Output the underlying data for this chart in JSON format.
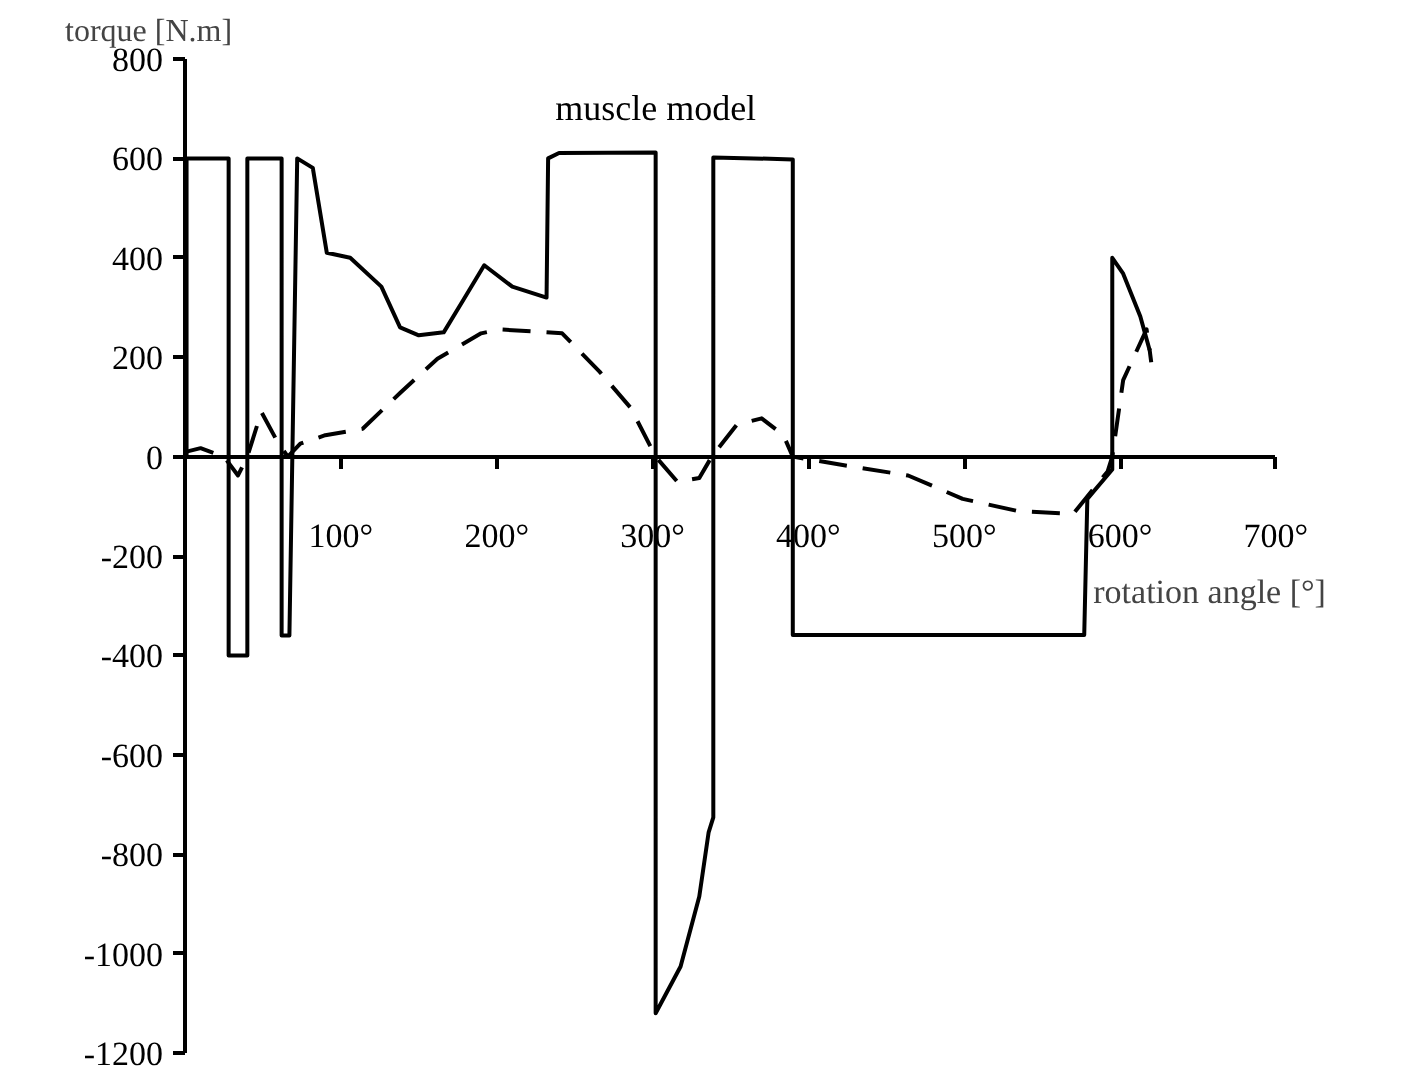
{
  "chart_data": {
    "type": "line",
    "ylabel": "torque [N.m]",
    "xlabel": "rotation angle [°]",
    "xlim": [
      0,
      700
    ],
    "ylim": [
      -1200,
      800
    ],
    "xticks": [
      {
        "value": 100,
        "label": "100°"
      },
      {
        "value": 200,
        "label": "200°"
      },
      {
        "value": 300,
        "label": "300°"
      },
      {
        "value": 400,
        "label": "400°"
      },
      {
        "value": 500,
        "label": "500°"
      },
      {
        "value": 600,
        "label": "600°"
      },
      {
        "value": 700,
        "label": "700°"
      }
    ],
    "yticks": [
      -1200,
      -1000,
      -800,
      -600,
      -400,
      -200,
      0,
      200,
      400,
      600,
      800
    ],
    "grid": false,
    "marker": "none",
    "series": [
      {
        "name": "muscle model",
        "color": "#000000",
        "line_style": "solid",
        "x": [
          1,
          1,
          28,
          28,
          40,
          40,
          62,
          62,
          67,
          72,
          82,
          91,
          106,
          126,
          138,
          150,
          166,
          178,
          192,
          210,
          232,
          233,
          240,
          302,
          302,
          318,
          330,
          336,
          339,
          339,
          390,
          390,
          577,
          579,
          595,
          595,
          602,
          613,
          619,
          620
        ],
        "values": [
          0,
          600,
          600,
          -400,
          -400,
          600,
          600,
          -360,
          -360,
          600,
          581,
          410,
          400,
          342,
          260,
          244,
          250,
          312,
          385,
          342,
          320,
          600,
          611,
          612,
          -1120,
          -1026,
          -885,
          -756,
          -726,
          602,
          598,
          -359,
          -359,
          -85,
          -26,
          400,
          368,
          282,
          214,
          190
        ]
      },
      {
        "color": "#000000",
        "line_style": "dashed",
        "x": [
          1,
          10,
          25,
          34,
          40,
          49,
          60,
          66,
          74,
          90,
          114,
          138,
          162,
          190,
          202,
          242,
          266,
          286,
          302,
          316,
          330,
          338,
          354,
          370,
          384,
          390,
          422,
          464,
          499,
          535,
          570,
          592,
          595,
          602,
          617,
          619
        ],
        "values": [
          10,
          17,
          0,
          -38,
          0,
          90,
          26,
          0,
          26,
          43,
          56,
          128,
          197,
          248,
          256,
          248,
          171,
          98,
          0,
          -51,
          -43,
          0,
          64,
          77,
          43,
          0,
          -17,
          -38,
          -85,
          -110,
          -115,
          -30,
          0,
          154,
          256,
          214
        ]
      }
    ]
  }
}
